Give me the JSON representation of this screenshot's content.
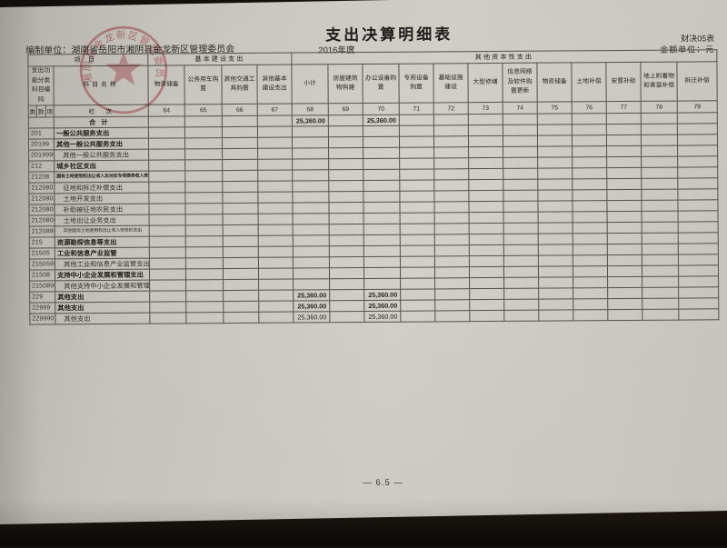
{
  "page": {
    "title": "支出决算明细表",
    "year": "2016年度",
    "form_no": "财决05表",
    "unit_label": "金额单位：元",
    "prepared_by": "编制单位：湖南省岳阳市湘阴县金龙新区管理委员会",
    "page_number": "— 6.5 —",
    "stamp_text": "湘阴县金龙新区管理委员会"
  },
  "table": {
    "group_headers": [
      "项目",
      "基本建设支出",
      "其他资本性支出"
    ],
    "code_header": "支出功能分类科目编码",
    "code_sub": [
      "类",
      "款",
      "项"
    ],
    "name_header": "科目名称",
    "lanci_label": "栏次",
    "columns": [
      {
        "name": "物资储备",
        "no": "64"
      },
      {
        "name": "公务用车购置",
        "no": "65"
      },
      {
        "name": "其他交通工具购置",
        "no": "66"
      },
      {
        "name": "其他基本建设支出",
        "no": "67"
      },
      {
        "name": "小计",
        "no": "68"
      },
      {
        "name": "房屋建筑物购建",
        "no": "69"
      },
      {
        "name": "办公设备购置",
        "no": "70"
      },
      {
        "name": "专用设备购置",
        "no": "71"
      },
      {
        "name": "基础设施建设",
        "no": "72"
      },
      {
        "name": "大型修缮",
        "no": "73"
      },
      {
        "name": "信息网络及软件购置更新",
        "no": "74"
      },
      {
        "name": "物资储备",
        "no": "75"
      },
      {
        "name": "土地补偿",
        "no": "76"
      },
      {
        "name": "安置补助",
        "no": "77"
      },
      {
        "name": "地上附着物和青苗补偿",
        "no": "78"
      },
      {
        "name": "拆迁补偿",
        "no": "79"
      }
    ],
    "rows": [
      {
        "code": "",
        "name": "合计",
        "level": "total",
        "values": {
          "68": "25,360.00",
          "70": "25,360.00"
        }
      },
      {
        "code": "201",
        "name": "一般公共服务支出",
        "level": "l1",
        "values": {}
      },
      {
        "code": "20199",
        "name": "其他一般公共服务支出",
        "level": "l2",
        "values": {}
      },
      {
        "code": "2019999",
        "name": "其他一般公共服务支出",
        "level": "l3",
        "values": {}
      },
      {
        "code": "212",
        "name": "城乡社区支出",
        "level": "l1",
        "values": {}
      },
      {
        "code": "21208",
        "name": "国有土地使用权出让收入及对应专项债务收入安排的支出",
        "level": "l2",
        "small": true,
        "values": {}
      },
      {
        "code": "2120801",
        "name": "征地和拆迁补偿支出",
        "level": "l3",
        "values": {}
      },
      {
        "code": "2120802",
        "name": "土地开发支出",
        "level": "l3",
        "values": {}
      },
      {
        "code": "2120805",
        "name": "补助被征地农民支出",
        "level": "l3",
        "values": {}
      },
      {
        "code": "2120806",
        "name": "土地出让业务支出",
        "level": "l3",
        "values": {}
      },
      {
        "code": "2120899",
        "name": "其他国有土地使用权出让收入安排的支出",
        "level": "l3",
        "small": true,
        "values": {}
      },
      {
        "code": "215",
        "name": "资源勘探信息等支出",
        "level": "l1",
        "values": {}
      },
      {
        "code": "21505",
        "name": "工业和信息产业监管",
        "level": "l2",
        "values": {}
      },
      {
        "code": "2150599",
        "name": "其他工业和信息产业监管支出",
        "level": "l3",
        "values": {}
      },
      {
        "code": "21508",
        "name": "支持中小企业发展和管理支出",
        "level": "l2",
        "values": {}
      },
      {
        "code": "2150899",
        "name": "其他支持中小企业发展和管理支出",
        "level": "l3",
        "values": {}
      },
      {
        "code": "229",
        "name": "其他支出",
        "level": "l1",
        "values": {
          "68": "25,360.00",
          "70": "25,360.00"
        }
      },
      {
        "code": "22999",
        "name": "其他支出",
        "level": "l2",
        "values": {
          "68": "25,360.00",
          "70": "25,360.00"
        }
      },
      {
        "code": "2299901",
        "name": "其他支出",
        "level": "l3",
        "values": {
          "68": "25,360.00",
          "70": "25,360.00"
        }
      }
    ]
  },
  "colors": {
    "paper": "#cccac3",
    "background": "#13100c",
    "table_line": "#53514c",
    "text": "#26251f",
    "stamp_red": "#bf3f4a"
  }
}
